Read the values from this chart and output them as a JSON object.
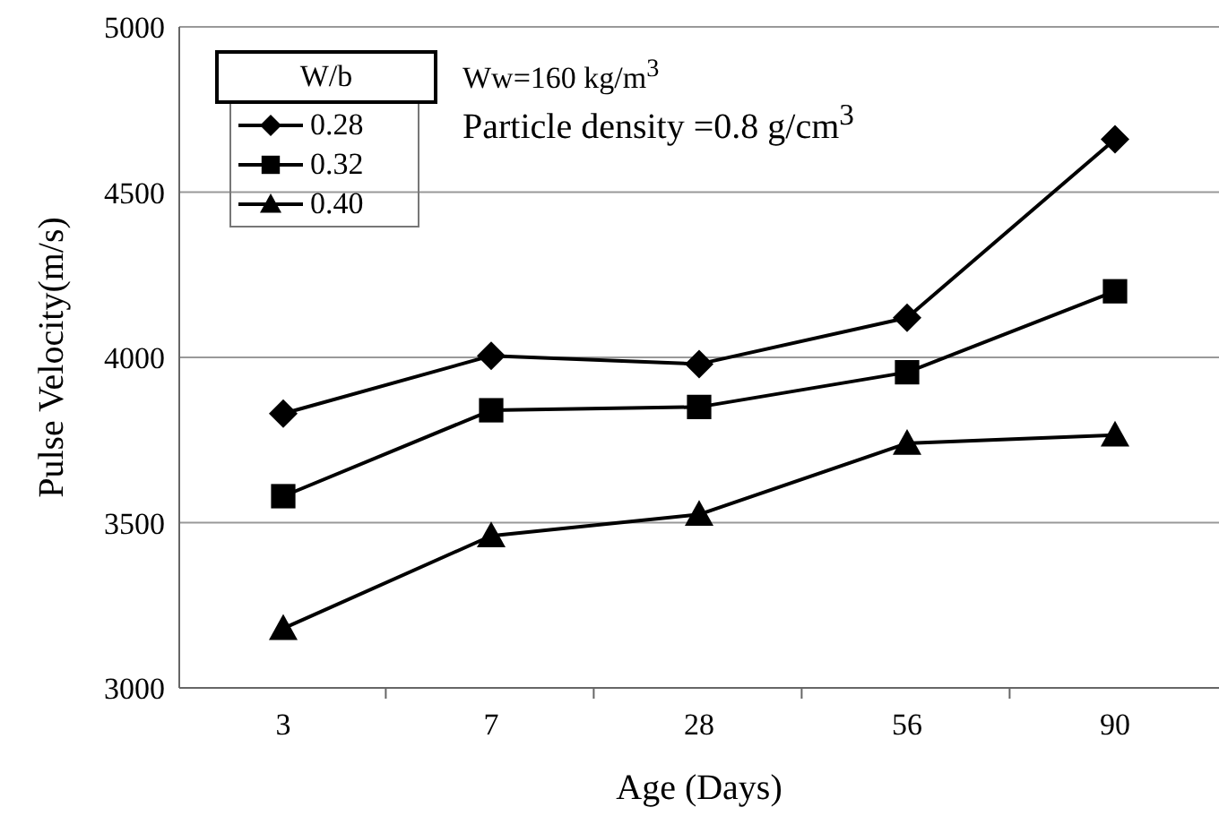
{
  "chart_data": {
    "type": "line",
    "xlabel": "Age (Days)",
    "ylabel": "Pulse Velocity(m/s)",
    "legend_title": "W/b",
    "categories": [
      "3",
      "7",
      "28",
      "56",
      "90"
    ],
    "series": [
      {
        "name": "0.28",
        "color": "#000000",
        "marker": "diamond",
        "values": [
          3830,
          4005,
          3980,
          4120,
          4660
        ]
      },
      {
        "name": "0.32",
        "color": "#000000",
        "marker": "square",
        "values": [
          3580,
          3840,
          3850,
          3955,
          4200
        ]
      },
      {
        "name": "0.40",
        "color": "#000000",
        "marker": "triangle",
        "values": [
          3180,
          3460,
          3525,
          3740,
          3765
        ]
      }
    ],
    "ylim": [
      3000,
      5000
    ],
    "yticks": [
      3000,
      3500,
      4000,
      4500,
      5000
    ],
    "grid": "y",
    "legend": "top left",
    "line_style": "solid",
    "annotations": [
      "Ww=160 kg/m$^{3}$",
      "Particle density =0.8 g/cm$^{3}$"
    ]
  }
}
